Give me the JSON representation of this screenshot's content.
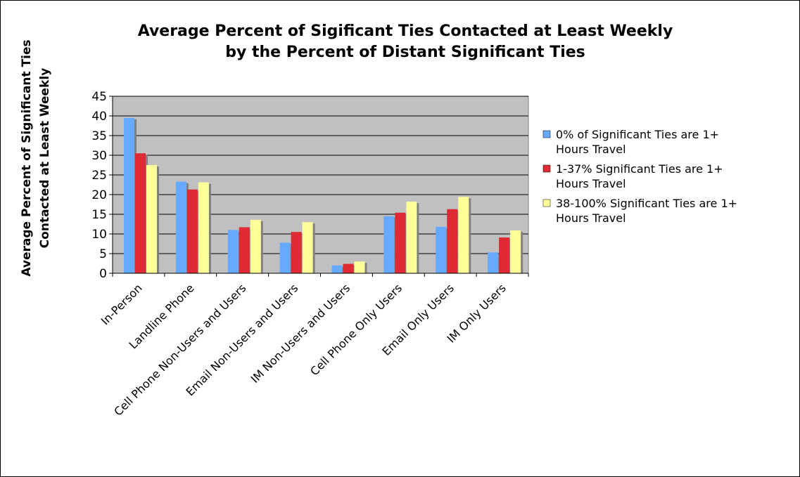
{
  "chart_data": {
    "type": "bar",
    "title_lines": [
      "Average Percent of Sigificant Ties Contacted at Least Weekly",
      "by the Percent of Distant Significant Ties"
    ],
    "ylabel_lines": [
      "Average Percent of Significant Ties",
      "Contacted at Least Weekly"
    ],
    "xlabel": "",
    "ylim": [
      0,
      45
    ],
    "yticks": [
      0,
      5,
      10,
      15,
      20,
      25,
      30,
      35,
      40,
      45
    ],
    "grid": true,
    "legend_position": "right",
    "categories": [
      "In-Person",
      "Landline Phone",
      "Cell Phone Non-Users and Users",
      "Email Non-Users and Users",
      "IM Non-Users and Users",
      "Cell Phone Only Users",
      "Email Only Users",
      "IM Only Users"
    ],
    "series": [
      {
        "name_lines": [
          "0% of Significant Ties are 1+",
          "Hours Travel"
        ],
        "color": "#66aaff",
        "values": [
          39.5,
          23.3,
          11,
          7.8,
          2,
          14.5,
          11.8,
          5.3
        ]
      },
      {
        "name_lines": [
          "1-37% Significant Ties are 1+",
          "Hours Travel"
        ],
        "color": "#dd2a35",
        "values": [
          30.5,
          21.3,
          11.7,
          10.5,
          2.4,
          15.4,
          16.3,
          9.1
        ]
      },
      {
        "name_lines": [
          "38-100% Significant Ties are 1+",
          "Hours Travel"
        ],
        "color": "#ffff99",
        "values": [
          27.5,
          23.1,
          13.6,
          13,
          3,
          18.2,
          19.4,
          10.9
        ]
      }
    ],
    "colors": {
      "plot_background": "#c0c0c0",
      "gridline": "#000000",
      "bar_shadow": "#808080"
    }
  }
}
